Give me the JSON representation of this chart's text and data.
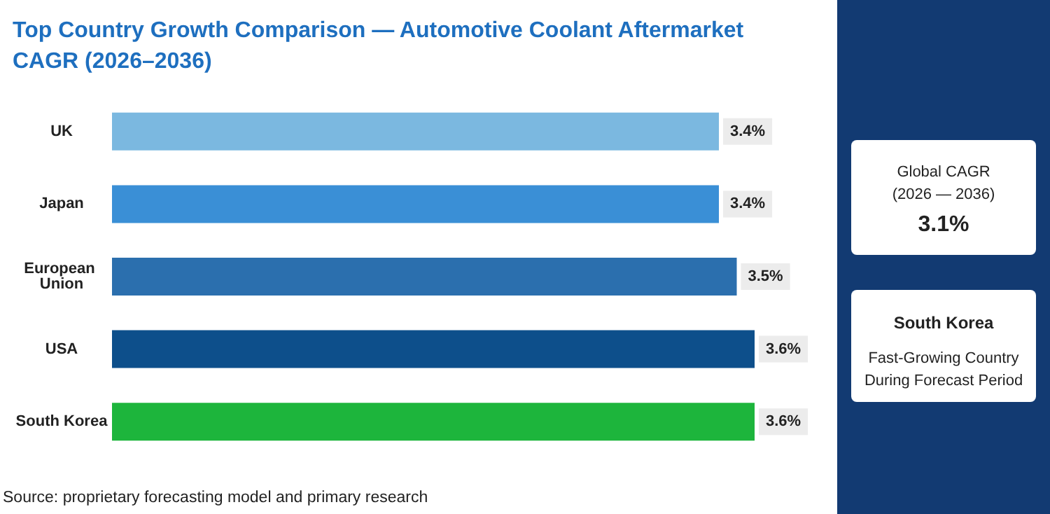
{
  "chart_data": {
    "type": "bar",
    "orientation": "horizontal",
    "title": "Top Country Growth Comparison — Automotive Coolant Aftermarket CAGR (2026–2036)",
    "categories": [
      "UK",
      "Japan",
      "European Union",
      "USA",
      "South Korea"
    ],
    "values": [
      3.4,
      3.4,
      3.5,
      3.6,
      3.6
    ],
    "colors": [
      "#7bb8e0",
      "#3a8fd6",
      "#2b6fae",
      "#0d4f8b",
      "#1db53c"
    ],
    "value_labels": [
      "3.4%",
      "3.4%",
      "3.5%",
      "3.6%",
      "3.6%"
    ],
    "tick_labels": "y",
    "annotations": [
      "Source: proprietary forecasting model and primary research",
      "Global CAGR\n(2026 — 2036)",
      "3.1%",
      "South Korea",
      "Fast-Growing Country\nDuring Forecast Period"
    ]
  }
}
